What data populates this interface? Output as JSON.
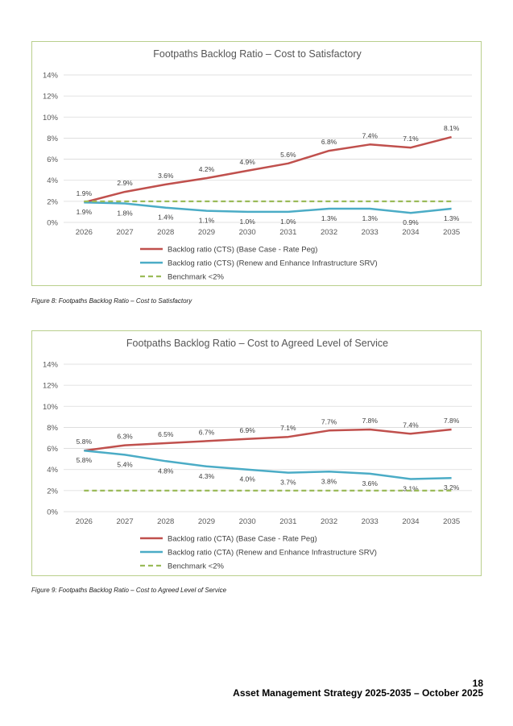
{
  "chart_data": [
    {
      "type": "line",
      "title": "Footpaths Backlog Ratio – Cost to Satisfactory",
      "categories": [
        "2026",
        "2027",
        "2028",
        "2029",
        "2030",
        "2031",
        "2032",
        "2033",
        "2034",
        "2035"
      ],
      "ylim": [
        0,
        14
      ],
      "yticks": [
        0,
        2,
        4,
        6,
        8,
        10,
        12,
        14
      ],
      "ytick_labels": [
        "0%",
        "2%",
        "4%",
        "6%",
        "8%",
        "10%",
        "12%",
        "14%"
      ],
      "xlabel": "",
      "ylabel": "",
      "series": [
        {
          "name": "Backlog ratio (CTS) (Base Case - Rate Peg)",
          "color": "#c0504d",
          "dashed": false,
          "label_pos": "above",
          "values": [
            1.9,
            2.9,
            3.6,
            4.2,
            4.9,
            5.6,
            6.8,
            7.4,
            7.1,
            8.1
          ],
          "labels": [
            "1.9%",
            "2.9%",
            "3.6%",
            "4.2%",
            "4.9%",
            "5.6%",
            "6.8%",
            "7.4%",
            "7.1%",
            "8.1%"
          ]
        },
        {
          "name": "Backlog ratio (CTS) (Renew and Enhance Infrastructure SRV)",
          "color": "#4bacc6",
          "dashed": false,
          "label_pos": "below",
          "values": [
            1.9,
            1.8,
            1.4,
            1.1,
            1.0,
            1.0,
            1.3,
            1.3,
            0.9,
            1.3
          ],
          "labels": [
            "1.9%",
            "1.8%",
            "1.4%",
            "1.1%",
            "1.0%",
            "1.0%",
            "1.3%",
            "1.3%",
            "0.9%",
            "1.3%"
          ]
        },
        {
          "name": "Benchmark <2%",
          "color": "#9bbb59",
          "dashed": true,
          "values": [
            2,
            2,
            2,
            2,
            2,
            2,
            2,
            2,
            2,
            2
          ],
          "labels": []
        }
      ]
    },
    {
      "type": "line",
      "title": "Footpaths Backlog Ratio – Cost to Agreed Level of Service",
      "categories": [
        "2026",
        "2027",
        "2028",
        "2029",
        "2030",
        "2031",
        "2032",
        "2033",
        "2034",
        "2035"
      ],
      "ylim": [
        0,
        14
      ],
      "yticks": [
        0,
        2,
        4,
        6,
        8,
        10,
        12,
        14
      ],
      "ytick_labels": [
        "0%",
        "2%",
        "4%",
        "6%",
        "8%",
        "10%",
        "12%",
        "14%"
      ],
      "xlabel": "",
      "ylabel": "",
      "series": [
        {
          "name": "Backlog ratio (CTA) (Base Case - Rate Peg)",
          "color": "#c0504d",
          "dashed": false,
          "label_pos": "above",
          "values": [
            5.8,
            6.3,
            6.5,
            6.7,
            6.9,
            7.1,
            7.7,
            7.8,
            7.4,
            7.8
          ],
          "labels": [
            "5.8%",
            "6.3%",
            "6.5%",
            "6.7%",
            "6.9%",
            "7.1%",
            "7.7%",
            "7.8%",
            "7.4%",
            "7.8%"
          ]
        },
        {
          "name": "Backlog ratio (CTA) (Renew and Enhance Infrastructure SRV)",
          "color": "#4bacc6",
          "dashed": false,
          "label_pos": "below",
          "values": [
            5.8,
            5.4,
            4.8,
            4.3,
            4.0,
            3.7,
            3.8,
            3.6,
            3.1,
            3.2
          ],
          "labels": [
            "5.8%",
            "5.4%",
            "4.8%",
            "4.3%",
            "4.0%",
            "3.7%",
            "3.8%",
            "3.6%",
            "3.1%",
            "3.2%"
          ]
        },
        {
          "name": "Benchmark <2%",
          "color": "#9bbb59",
          "dashed": true,
          "values": [
            2,
            2,
            2,
            2,
            2,
            2,
            2,
            2,
            2,
            2
          ],
          "labels": []
        }
      ]
    }
  ],
  "captions": {
    "figure8": "Figure 8: Footpaths Backlog Ratio – Cost to Satisfactory",
    "figure9": "Figure 9: Footpaths Backlog Ratio – Cost to Agreed Level of Service"
  },
  "footer": {
    "page_number": "18",
    "title": "Asset Management Strategy 2025-2035 – October 2025"
  }
}
